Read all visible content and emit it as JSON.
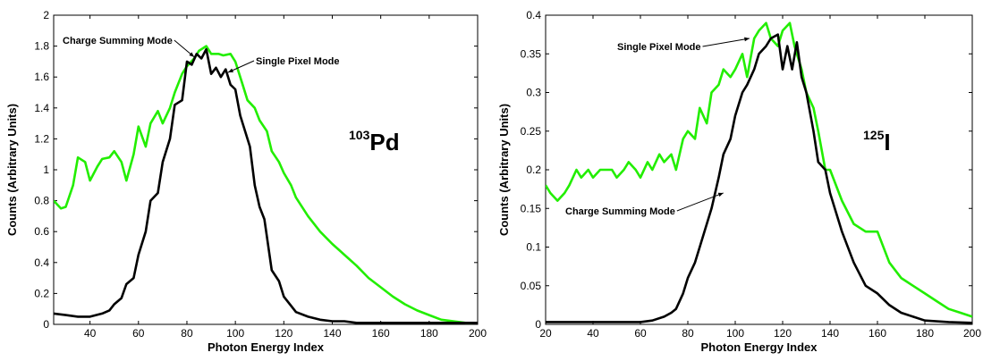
{
  "chart_data": [
    {
      "type": "line",
      "xlabel": "Photon Energy Index",
      "ylabel": "Counts (Arbitrary Units)",
      "xlim": [
        25,
        200
      ],
      "ylim": [
        0,
        2
      ],
      "xticks": [
        "40",
        "60",
        "80",
        "100",
        "120",
        "140",
        "160",
        "180",
        "200"
      ],
      "yticks": [
        "0",
        "0.2",
        "0.4",
        "0.6",
        "0.8",
        "1",
        "1.2",
        "1.4",
        "1.6",
        "1.8",
        "2"
      ],
      "isotope": {
        "mass": "103",
        "symbol": "Pd"
      },
      "annotations": [
        {
          "text": "Charge Summing Mode",
          "series": "charge",
          "at_x": 83,
          "at_y": 1.73
        },
        {
          "text": "Single Pixel Mode",
          "series": "single",
          "at_x": 97,
          "at_y": 1.63
        }
      ],
      "series": [
        {
          "id": "single",
          "color": "#22ee00",
          "x": [
            25,
            28,
            30,
            33,
            35,
            38,
            40,
            43,
            45,
            48,
            50,
            53,
            55,
            58,
            60,
            63,
            65,
            68,
            70,
            73,
            75,
            78,
            80,
            83,
            85,
            88,
            90,
            93,
            95,
            98,
            100,
            103,
            105,
            108,
            110,
            113,
            115,
            118,
            120,
            123,
            125,
            130,
            135,
            140,
            145,
            150,
            155,
            160,
            165,
            170,
            175,
            180,
            185,
            190,
            195,
            198
          ],
          "y": [
            0.8,
            0.75,
            0.76,
            0.9,
            1.08,
            1.05,
            0.93,
            1.02,
            1.07,
            1.08,
            1.12,
            1.05,
            0.93,
            1.1,
            1.28,
            1.15,
            1.3,
            1.38,
            1.3,
            1.4,
            1.5,
            1.62,
            1.67,
            1.72,
            1.77,
            1.8,
            1.75,
            1.75,
            1.74,
            1.75,
            1.7,
            1.55,
            1.45,
            1.4,
            1.32,
            1.25,
            1.12,
            1.05,
            0.98,
            0.9,
            0.82,
            0.7,
            0.6,
            0.52,
            0.45,
            0.38,
            0.3,
            0.24,
            0.18,
            0.13,
            0.09,
            0.06,
            0.03,
            0.02,
            0.01,
            0.01
          ]
        },
        {
          "id": "charge",
          "color": "#000000",
          "x": [
            25,
            30,
            35,
            40,
            45,
            48,
            50,
            53,
            55,
            58,
            60,
            63,
            65,
            68,
            70,
            73,
            75,
            78,
            80,
            82,
            84,
            86,
            88,
            90,
            92,
            94,
            96,
            98,
            100,
            102,
            104,
            106,
            108,
            110,
            112,
            115,
            118,
            120,
            123,
            125,
            130,
            135,
            140,
            145,
            150,
            160,
            170,
            180,
            190,
            200
          ],
          "y": [
            0.07,
            0.06,
            0.05,
            0.05,
            0.07,
            0.09,
            0.13,
            0.17,
            0.26,
            0.3,
            0.45,
            0.6,
            0.8,
            0.85,
            1.05,
            1.2,
            1.42,
            1.45,
            1.7,
            1.68,
            1.75,
            1.72,
            1.78,
            1.62,
            1.66,
            1.6,
            1.65,
            1.55,
            1.52,
            1.35,
            1.25,
            1.15,
            0.9,
            0.76,
            0.68,
            0.35,
            0.28,
            0.18,
            0.12,
            0.08,
            0.05,
            0.03,
            0.02,
            0.02,
            0.01,
            0.01,
            0.01,
            0.01,
            0.01,
            0.01
          ]
        }
      ]
    },
    {
      "type": "line",
      "xlabel": "Photon Energy Index",
      "ylabel": "Counts (Arbitrary Units)",
      "xlim": [
        20,
        200
      ],
      "ylim": [
        0,
        0.4
      ],
      "xticks": [
        "20",
        "40",
        "60",
        "80",
        "100",
        "120",
        "140",
        "160",
        "180",
        "200"
      ],
      "yticks": [
        "0",
        "0.05",
        "0.1",
        "0.15",
        "0.2",
        "0.25",
        "0.3",
        "0.35",
        "0.4"
      ],
      "isotope": {
        "mass": "125",
        "symbol": "I"
      },
      "annotations": [
        {
          "text": "Single Pixel Mode",
          "series": "single",
          "at_x": 106,
          "at_y": 0.37
        },
        {
          "text": "Charge Summing Mode",
          "series": "charge",
          "at_x": 95,
          "at_y": 0.17
        }
      ],
      "series": [
        {
          "id": "single",
          "color": "#22ee00",
          "x": [
            20,
            22,
            25,
            28,
            30,
            33,
            35,
            38,
            40,
            43,
            45,
            48,
            50,
            53,
            55,
            58,
            60,
            63,
            65,
            68,
            70,
            73,
            75,
            78,
            80,
            83,
            85,
            88,
            90,
            93,
            95,
            98,
            100,
            103,
            105,
            108,
            110,
            113,
            115,
            118,
            120,
            123,
            125,
            128,
            130,
            133,
            135,
            138,
            140,
            145,
            150,
            155,
            160,
            165,
            170,
            175,
            180,
            185,
            190,
            195,
            200
          ],
          "y": [
            0.18,
            0.17,
            0.16,
            0.17,
            0.18,
            0.2,
            0.19,
            0.2,
            0.19,
            0.2,
            0.2,
            0.2,
            0.19,
            0.2,
            0.21,
            0.2,
            0.19,
            0.21,
            0.2,
            0.22,
            0.21,
            0.22,
            0.2,
            0.24,
            0.25,
            0.24,
            0.28,
            0.26,
            0.3,
            0.31,
            0.33,
            0.32,
            0.33,
            0.35,
            0.32,
            0.37,
            0.38,
            0.39,
            0.37,
            0.36,
            0.38,
            0.39,
            0.36,
            0.33,
            0.3,
            0.28,
            0.25,
            0.2,
            0.2,
            0.16,
            0.13,
            0.12,
            0.12,
            0.08,
            0.06,
            0.05,
            0.04,
            0.03,
            0.02,
            0.015,
            0.01
          ]
        },
        {
          "id": "charge",
          "color": "#000000",
          "x": [
            20,
            30,
            40,
            50,
            60,
            65,
            70,
            73,
            75,
            78,
            80,
            83,
            85,
            88,
            90,
            93,
            95,
            98,
            100,
            103,
            105,
            108,
            110,
            113,
            115,
            118,
            120,
            122,
            124,
            126,
            128,
            130,
            133,
            135,
            138,
            140,
            145,
            150,
            155,
            160,
            165,
            170,
            175,
            180,
            190,
            200
          ],
          "y": [
            0.003,
            0.003,
            0.003,
            0.003,
            0.003,
            0.005,
            0.01,
            0.015,
            0.02,
            0.04,
            0.06,
            0.08,
            0.1,
            0.13,
            0.15,
            0.19,
            0.22,
            0.24,
            0.27,
            0.3,
            0.31,
            0.33,
            0.35,
            0.36,
            0.37,
            0.375,
            0.33,
            0.36,
            0.33,
            0.365,
            0.32,
            0.3,
            0.25,
            0.21,
            0.2,
            0.17,
            0.12,
            0.08,
            0.05,
            0.04,
            0.025,
            0.015,
            0.01,
            0.005,
            0.003,
            0.002
          ]
        }
      ]
    }
  ]
}
